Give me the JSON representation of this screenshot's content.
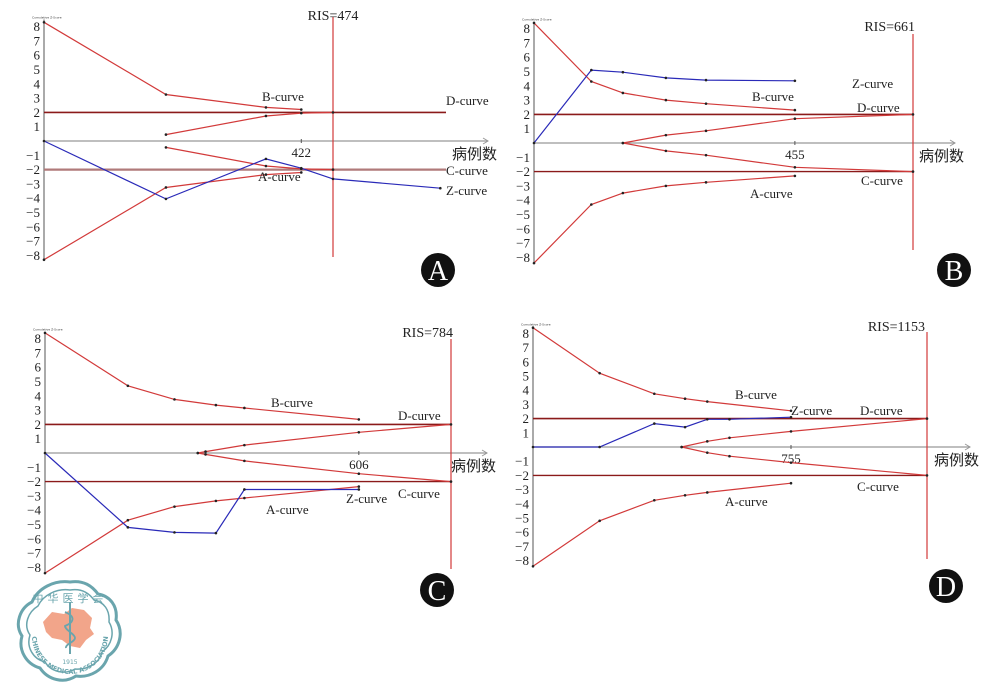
{
  "colors": {
    "boundary": "#d23a3a",
    "boundary_dark": "#8b1a1a",
    "z_curve": "#2a2ab8",
    "axis": "#999999",
    "badge": "#111111",
    "logo_ring": "#6aa5ad",
    "logo_map": "#f2a58a"
  },
  "logo": {
    "top_text": "中华医学会",
    "bottom_text": "CHINESE MEDICAL ASSOCIATION",
    "year": "1915"
  },
  "chart_data": [
    {
      "type": "line",
      "panel": "A",
      "xlabel": "病例数",
      "ylabel": "Cumulative Z-Score",
      "ylim": [
        -8,
        8
      ],
      "yticks": [
        "8",
        "7",
        "6",
        "5",
        "4",
        "3",
        "2",
        "1",
        "-1",
        "-2",
        "-3",
        "-4",
        "-5",
        "-6",
        "-7",
        "-8"
      ],
      "ris_label": "RIS=474",
      "ris": 474,
      "x_tick_label": "422",
      "x_tick": 422,
      "xmax": 760,
      "conventional_upper": 2,
      "conventional_lower": -2,
      "curve_labels": {
        "A": "A-curve",
        "B": "B-curve",
        "C": "C-curve",
        "D": "D-curve",
        "Z": "Z-curve"
      },
      "series": [
        {
          "name": "B-curve",
          "x": [
            0,
            200,
            364,
            422
          ],
          "y": [
            8.3,
            3.25,
            2.35,
            2.2
          ]
        },
        {
          "name": "A-curve",
          "x": [
            0,
            200,
            364,
            422
          ],
          "y": [
            -8.3,
            -3.25,
            -2.35,
            -2.2
          ]
        },
        {
          "name": "D-inner",
          "x": [
            200,
            364,
            422,
            474
          ],
          "y": [
            0.45,
            1.75,
            1.95,
            2.0
          ]
        },
        {
          "name": "C-inner",
          "x": [
            200,
            364,
            422,
            474
          ],
          "y": [
            -0.45,
            -1.75,
            -1.95,
            -2.0
          ]
        },
        {
          "name": "Z-curve",
          "x": [
            0,
            200,
            364,
            422,
            474,
            650
          ],
          "y": [
            0,
            -4.05,
            -1.25,
            -1.9,
            -2.65,
            -3.3
          ]
        }
      ]
    },
    {
      "type": "line",
      "panel": "B",
      "xlabel": "病例数",
      "ylabel": "Cumulative Z-Score",
      "ylim": [
        -8,
        8
      ],
      "yticks": [
        "8",
        "7",
        "6",
        "5",
        "4",
        "3",
        "2",
        "1",
        "-1",
        "-2",
        "-3",
        "-4",
        "-5",
        "-6",
        "-7",
        "-8"
      ],
      "ris_label": "RIS=661",
      "ris": 661,
      "x_tick_label": "455",
      "x_tick": 455,
      "xmax": 730,
      "conventional_upper": 2,
      "conventional_lower": -2,
      "curve_labels": {
        "A": "A-curve",
        "B": "B-curve",
        "C": "C-curve",
        "D": "D-curve",
        "Z": "Z-curve"
      },
      "series": [
        {
          "name": "B-curve",
          "x": [
            0,
            100,
            155,
            230,
            300,
            455
          ],
          "y": [
            8.4,
            4.3,
            3.5,
            3.0,
            2.75,
            2.3
          ]
        },
        {
          "name": "A-curve",
          "x": [
            0,
            100,
            155,
            230,
            300,
            455
          ],
          "y": [
            -8.4,
            -4.3,
            -3.5,
            -3.0,
            -2.75,
            -2.3
          ]
        },
        {
          "name": "D-inner",
          "x": [
            155,
            230,
            300,
            455,
            661
          ],
          "y": [
            0.0,
            0.55,
            0.85,
            1.7,
            2.0
          ]
        },
        {
          "name": "C-inner",
          "x": [
            155,
            230,
            300,
            455,
            661
          ],
          "y": [
            0.0,
            -0.55,
            -0.85,
            -1.7,
            -2.0
          ]
        },
        {
          "name": "Z-curve",
          "x": [
            0,
            100,
            155,
            230,
            300,
            455
          ],
          "y": [
            0,
            5.1,
            4.95,
            4.55,
            4.4,
            4.35
          ]
        }
      ]
    },
    {
      "type": "line",
      "panel": "C",
      "xlabel": "病例数",
      "ylabel": "Cumulative Z-Score",
      "ylim": [
        -8,
        8
      ],
      "yticks": [
        "8",
        "7",
        "6",
        "5",
        "4",
        "3",
        "2",
        "1",
        "-1",
        "-2",
        "-3",
        "-4",
        "-5",
        "-6",
        "-7",
        "-8"
      ],
      "ris_label": "RIS=784",
      "ris": 784,
      "x_tick_label": "606",
      "x_tick": 606,
      "xmax": 865,
      "conventional_upper": 2,
      "conventional_lower": -2,
      "curve_labels": {
        "A": "A-curve",
        "B": "B-curve",
        "C": "C-curve",
        "D": "D-curve",
        "Z": "Z-curve"
      },
      "series": [
        {
          "name": "B-curve",
          "x": [
            0,
            160,
            250,
            330,
            385,
            606
          ],
          "y": [
            8.4,
            4.7,
            3.75,
            3.35,
            3.15,
            2.35
          ]
        },
        {
          "name": "A-curve",
          "x": [
            0,
            160,
            250,
            330,
            385,
            606
          ],
          "y": [
            -8.4,
            -4.7,
            -3.75,
            -3.35,
            -3.15,
            -2.35
          ]
        },
        {
          "name": "D-inner",
          "x": [
            295,
            310,
            385,
            606,
            784
          ],
          "y": [
            0.0,
            0.1,
            0.55,
            1.45,
            2.0
          ]
        },
        {
          "name": "C-inner",
          "x": [
            295,
            310,
            385,
            606,
            784
          ],
          "y": [
            0.0,
            -0.1,
            -0.55,
            -1.45,
            -2.0
          ]
        },
        {
          "name": "Z-curve",
          "x": [
            0,
            160,
            250,
            330,
            385,
            606
          ],
          "y": [
            0,
            -5.2,
            -5.55,
            -5.6,
            -2.55,
            -2.55
          ]
        }
      ]
    },
    {
      "type": "line",
      "panel": "D",
      "xlabel": "病例数",
      "ylabel": "Cumulative Z-Score",
      "ylim": [
        -8,
        8
      ],
      "yticks": [
        "8",
        "7",
        "6",
        "5",
        "4",
        "3",
        "2",
        "1",
        "-1",
        "-2",
        "-3",
        "-4",
        "-5",
        "-6",
        "-7",
        "-8"
      ],
      "ris_label": "RIS=1153",
      "ris": 1153,
      "x_tick_label": "755",
      "x_tick": 755,
      "xmax": 1225,
      "conventional_upper": 2,
      "conventional_lower": -2,
      "curve_labels": {
        "A": "A-curve",
        "B": "B-curve",
        "C": "C-curve",
        "D": "D-curve",
        "Z": "Z-curve"
      },
      "series": [
        {
          "name": "B-curve",
          "x": [
            0,
            195,
            355,
            445,
            510,
            755
          ],
          "y": [
            8.4,
            5.2,
            3.75,
            3.4,
            3.2,
            2.55
          ]
        },
        {
          "name": "A-curve",
          "x": [
            0,
            195,
            355,
            445,
            510,
            755
          ],
          "y": [
            -8.4,
            -5.2,
            -3.75,
            -3.4,
            -3.2,
            -2.55
          ]
        },
        {
          "name": "D-inner",
          "x": [
            435,
            510,
            575,
            755,
            1153
          ],
          "y": [
            0.0,
            0.4,
            0.65,
            1.1,
            2.0
          ]
        },
        {
          "name": "C-inner",
          "x": [
            435,
            510,
            575,
            755,
            1153
          ],
          "y": [
            0.0,
            -0.4,
            -0.65,
            -1.1,
            -2.0
          ]
        },
        {
          "name": "Z-curve",
          "x": [
            0,
            195,
            355,
            445,
            510,
            575,
            755
          ],
          "y": [
            0,
            0,
            1.65,
            1.4,
            1.95,
            1.95,
            2.1
          ]
        }
      ]
    }
  ]
}
